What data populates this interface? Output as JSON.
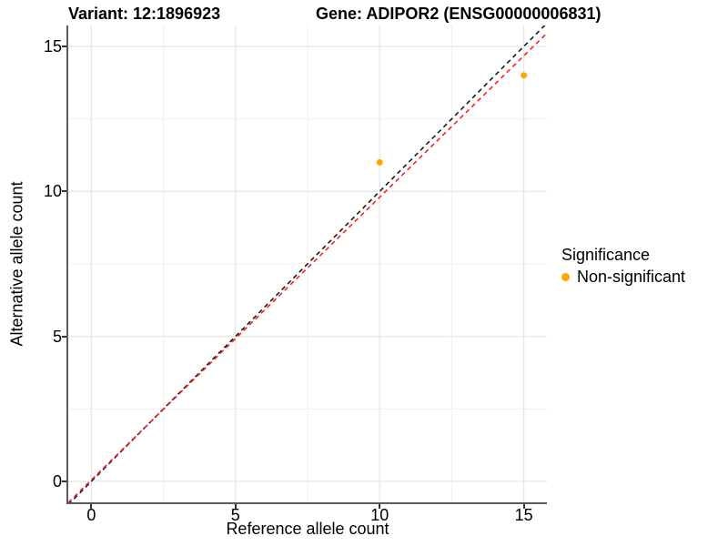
{
  "header": {
    "variant_title": "Variant: 12:1896923",
    "gene_title": "Gene: ADIPOR2 (ENSG00000006831)"
  },
  "legend": {
    "title": "Significance",
    "items": [
      {
        "label": "Non-significant",
        "color": "#FFA500"
      }
    ]
  },
  "colors": {
    "grid_major": "#E4E4E4",
    "grid_minor": "#F0F0F0",
    "axis_line": "#5B5B5B",
    "tick_mark": "#333333",
    "text": "#000000",
    "point_orange": "#FFA500",
    "identity_line": "#1A1A1A",
    "fit_line": "#FF1F1F"
  },
  "chart_data": {
    "type": "scatter",
    "title_left": "Variant: 12:1896923",
    "title_right": "Gene: ADIPOR2 (ENSG00000006831)",
    "xlabel": "Reference allele count",
    "ylabel": "Alternative allele count",
    "xlim": [
      -0.8,
      15.8
    ],
    "ylim": [
      -0.72,
      15.72
    ],
    "x_ticks": [
      0,
      5,
      10,
      15
    ],
    "y_ticks": [
      0,
      5,
      10,
      15
    ],
    "x_minor_ticks": [
      2.5,
      7.5,
      12.5
    ],
    "y_minor_ticks": [
      2.5,
      7.5,
      12.5
    ],
    "grid": true,
    "legend_position": "right",
    "series": [
      {
        "name": "Non-significant",
        "color": "#FFA500",
        "marker_radius": 3.5,
        "points": [
          [
            10,
            11
          ],
          [
            15,
            14
          ]
        ]
      }
    ],
    "lines": [
      {
        "name": "identity-line",
        "color": "#1A1A1A",
        "dash": "5 4",
        "width": 1.6,
        "slope": 1.0,
        "intercept": 0.0
      },
      {
        "name": "fit-line",
        "color": "#FF1F1F",
        "dash": "5 4",
        "width": 1.6,
        "slope": 0.975,
        "intercept": 0.05
      }
    ]
  }
}
